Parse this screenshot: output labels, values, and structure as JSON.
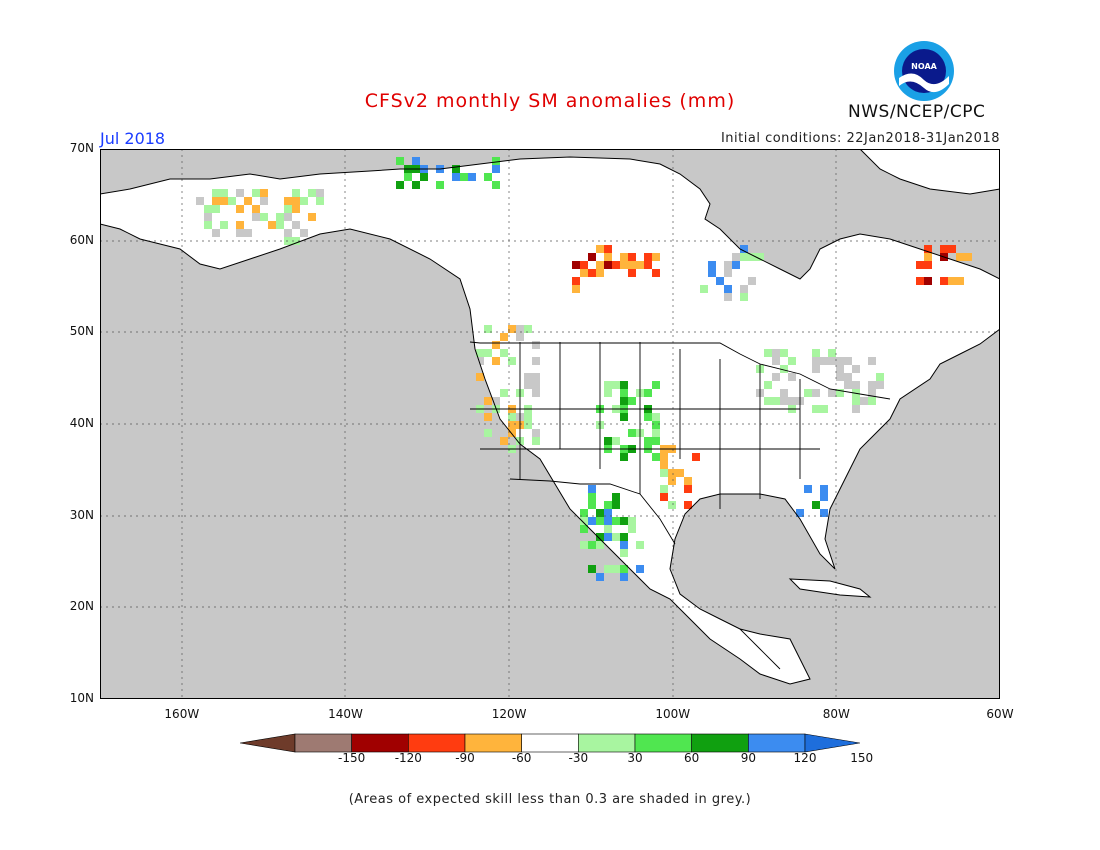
{
  "title": "CFSv2 monthly SM anomalies (mm)",
  "valid_month": "Jul 2018",
  "initial_conditions": "Initial conditions: 22Jan2018-31Jan2018",
  "agency": "NWS/NCEP/CPC",
  "logo_text": "NOAA",
  "note": "(Areas of expected skill less than 0.3 are shaded in grey.)",
  "colors": {
    "skill_mask": "#c8c8c8",
    "land": "#ffffff",
    "border": "#000000"
  },
  "map": {
    "lon_range": [
      -170,
      -60
    ],
    "lat_range": [
      10,
      70
    ],
    "lat_labels": [
      {
        "lat": 70,
        "text": "70N"
      },
      {
        "lat": 60,
        "text": "60N"
      },
      {
        "lat": 50,
        "text": "50N"
      },
      {
        "lat": 40,
        "text": "40N"
      },
      {
        "lat": 30,
        "text": "30N"
      },
      {
        "lat": 20,
        "text": "20N"
      },
      {
        "lat": 10,
        "text": "10N"
      }
    ],
    "lon_labels": [
      {
        "lon": -160,
        "text": "160W"
      },
      {
        "lon": -140,
        "text": "140W"
      },
      {
        "lon": -120,
        "text": "120W"
      },
      {
        "lon": -100,
        "text": "100W"
      },
      {
        "lon": -80,
        "text": "80W"
      },
      {
        "lon": -60,
        "text": "60W"
      }
    ]
  },
  "colorbar": {
    "labels": [
      "-150",
      "-120",
      "-90",
      "-60",
      "-30",
      "30",
      "60",
      "90",
      "120",
      "150"
    ],
    "colors": [
      "#6e3b2a",
      "#9e7a72",
      "#a00000",
      "#ff3c10",
      "#ffb43c",
      "#ffffff",
      "#a8f5a0",
      "#50e650",
      "#10a010",
      "#3c8cf0",
      "#1e6edc"
    ]
  }
}
